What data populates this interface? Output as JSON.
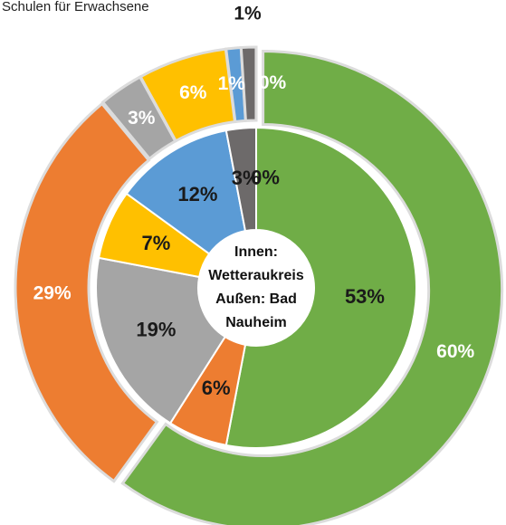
{
  "chart_data": {
    "type": "donut",
    "title": "Schulen für Erwachsene",
    "center_label": [
      "Innen:",
      "Wetteraukreis",
      "Außen: Bad",
      "Nauheim"
    ],
    "colors": [
      "#70ad47",
      "#ed7d31",
      "#a5a5a5",
      "#ffc000",
      "#5b9bd5",
      "#6d6a6a",
      "#7030a0"
    ],
    "series": [
      {
        "values": [
          53,
          6,
          19,
          7,
          12,
          3,
          0
        ],
        "value_labels": [
          "53%",
          "6%",
          "19%",
          "7%",
          "12%",
          "3%",
          "0%"
        ]
      },
      {
        "values": [
          60,
          29,
          3,
          6,
          1,
          1,
          0
        ],
        "value_labels": [
          "60%",
          "29%",
          "3%",
          "6%",
          "1%",
          "1%",
          "0%"
        ]
      }
    ]
  }
}
